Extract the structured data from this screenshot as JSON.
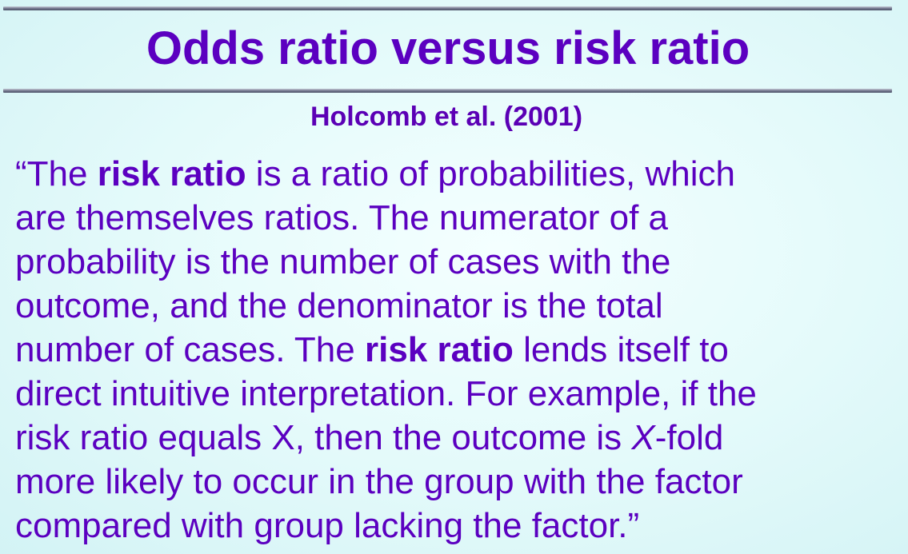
{
  "slide": {
    "title": "Odds ratio versus risk ratio",
    "citation": "Holcomb et al.  (2001)",
    "quote": {
      "l1a": "“The ",
      "l1b": "risk ratio",
      "l1c": " is a ratio of probabilities, which",
      "l2": "are themselves ratios. The numerator of a",
      "l3": "probability is the number of cases with the",
      "l4": "outcome, and the denominator is the total",
      "l5a": "number of cases. The ",
      "l5b": "risk ratio",
      "l5c": " lends itself to",
      "l6": "direct intuitive interpretation. For example, if the",
      "l7a": "risk ratio equals X, then the outcome is ",
      "l7b": "X",
      "l7c": "-fold",
      "l8": "more likely to occur in the group with the factor",
      "l9": "compared with group lacking the factor.”"
    }
  }
}
